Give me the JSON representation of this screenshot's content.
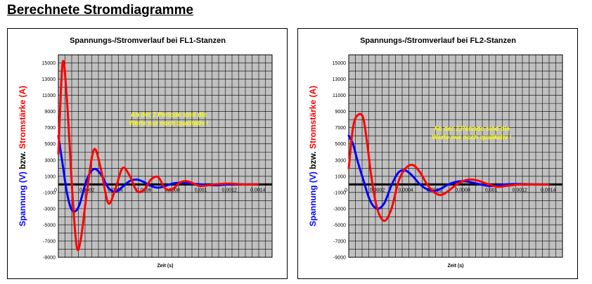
{
  "page": {
    "title": "Berechnete Stromdiagramme"
  },
  "colors": {
    "voltage": "#0000ff",
    "current": "#ff0000",
    "plot_bg": "#c0c0c0",
    "grid": "#000000",
    "note": "#ffff00"
  },
  "chart_data": [
    {
      "type": "line",
      "title": "Spannungs-/Stromverlauf bei FL1-Stanzen",
      "xlabel": "Zeit (s)",
      "ylabel_voltage": "Spannung (V)",
      "ylabel_join": "bzw.",
      "ylabel_current": "Stromstärke (A)",
      "note_lines": [
        "Ab der 2.Periode sind die",
        "Werte nur noch qualitativ !"
      ],
      "xlim": [
        0,
        0.0015
      ],
      "ylim": [
        -9000,
        16000
      ],
      "x_ticks": [
        "0",
        "0,0002",
        "0,0004",
        "0,0006",
        "0,0008",
        "0,001",
        "0,0012",
        "0,0014"
      ],
      "x_tick_values": [
        0,
        0.0002,
        0.0004,
        0.0006,
        0.0008,
        0.001,
        0.0012,
        0.0014
      ],
      "y_ticks": [
        "15000",
        "13000",
        "11000",
        "9000",
        "7000",
        "5000",
        "3000",
        "1000",
        "-1000",
        "-3000",
        "-5000",
        "-7000",
        "-9000"
      ],
      "y_tick_values": [
        15000,
        13000,
        11000,
        9000,
        7000,
        5000,
        3000,
        1000,
        -1000,
        -3000,
        -5000,
        -7000,
        -9000
      ],
      "series": [
        {
          "role": "voltage",
          "x": [
            0,
            3e-05,
            6e-05,
            9e-05,
            0.00012,
            0.00015,
            0.0002,
            0.00025,
            0.0003,
            0.00035,
            0.0004,
            0.00045,
            0.0005,
            0.00055,
            0.0006,
            0.00065,
            0.0007,
            0.00075,
            0.0008,
            0.00085,
            0.0009,
            0.001,
            0.0011,
            0.0012,
            0.0013,
            0.0014
          ],
          "y": [
            6000,
            2500,
            -1000,
            -3000,
            -3300,
            -2400,
            600,
            1900,
            1200,
            -400,
            -900,
            -300,
            400,
            600,
            300,
            -200,
            -400,
            -200,
            100,
            200,
            150,
            0,
            -100,
            0,
            0,
            0
          ]
        },
        {
          "role": "current",
          "x": [
            0,
            3e-05,
            6e-05,
            0.0001,
            0.00013,
            0.00016,
            0.0002,
            0.00025,
            0.0003,
            0.00035,
            0.0004,
            0.00045,
            0.0005,
            0.00055,
            0.0006,
            0.00065,
            0.0007,
            0.00075,
            0.0008,
            0.00085,
            0.0009,
            0.00095,
            0.001,
            0.0011,
            0.0012,
            0.0013,
            0.0014
          ],
          "y": [
            3800,
            15000,
            10500,
            -1500,
            -7800,
            -6500,
            -1000,
            4300,
            1800,
            -2300,
            -600,
            2000,
            1100,
            -800,
            -700,
            600,
            900,
            -500,
            -600,
            200,
            400,
            100,
            -200,
            0,
            100,
            0,
            0
          ]
        }
      ]
    },
    {
      "type": "line",
      "title": "Spannungs-/Stromverlauf bei FL2-Stanzen",
      "xlabel": "Zeit (s)",
      "ylabel_voltage": "Spannung (V)",
      "ylabel_join": "bzw.",
      "ylabel_current": "Stromstärke (A)",
      "note_lines": [
        "Ab der 2.Periode sind die",
        "Werte nur noch qualitativ !"
      ],
      "xlim": [
        0,
        0.0015
      ],
      "ylim": [
        -9000,
        16000
      ],
      "x_ticks": [
        "0",
        "0,0002",
        "0,0004",
        "0,0006",
        "0,0008",
        "0,001",
        "0,0012",
        "0,0014"
      ],
      "x_tick_values": [
        0,
        0.0002,
        0.0004,
        0.0006,
        0.0008,
        0.001,
        0.0012,
        0.0014
      ],
      "y_ticks": [
        "15000",
        "13000",
        "11000",
        "9000",
        "7000",
        "5000",
        "3000",
        "1000",
        "-1000",
        "-3000",
        "-5000",
        "-7000",
        "-9000"
      ],
      "y_tick_values": [
        15000,
        13000,
        11000,
        9000,
        7000,
        5000,
        3000,
        1000,
        -1000,
        -3000,
        -5000,
        -7000,
        -9000
      ],
      "series": [
        {
          "role": "voltage",
          "x": [
            0,
            3e-05,
            6e-05,
            0.0001,
            0.00015,
            0.0002,
            0.00025,
            0.0003,
            0.00035,
            0.0004,
            0.00045,
            0.0005,
            0.00055,
            0.0006,
            0.00065,
            0.0007,
            0.00075,
            0.0008,
            0.00085,
            0.0009,
            0.00095,
            0.001,
            0.00105,
            0.0011,
            0.0012,
            0.0013,
            0.0014
          ],
          "y": [
            6000,
            5000,
            3000,
            700,
            -2000,
            -3000,
            -2300,
            -100,
            1500,
            1700,
            1000,
            0,
            -600,
            -800,
            -500,
            0,
            300,
            400,
            300,
            100,
            -100,
            -200,
            -100,
            0,
            50,
            0,
            0
          ]
        },
        {
          "role": "current",
          "x": [
            0,
            3e-05,
            6e-05,
            0.0001,
            0.00013,
            0.00016,
            0.0002,
            0.00025,
            0.0003,
            0.00035,
            0.0004,
            0.00045,
            0.0005,
            0.00055,
            0.0006,
            0.00065,
            0.0007,
            0.00075,
            0.0008,
            0.00085,
            0.0009,
            0.00095,
            0.001,
            0.00105,
            0.0011,
            0.0012,
            0.0013,
            0.0014
          ],
          "y": [
            2000,
            7000,
            8500,
            8300,
            5000,
            800,
            -3000,
            -4500,
            -3000,
            400,
            2000,
            2400,
            1500,
            0,
            -1000,
            -1300,
            -800,
            -100,
            400,
            600,
            500,
            200,
            -100,
            -300,
            -200,
            0,
            0,
            0
          ]
        }
      ]
    }
  ]
}
